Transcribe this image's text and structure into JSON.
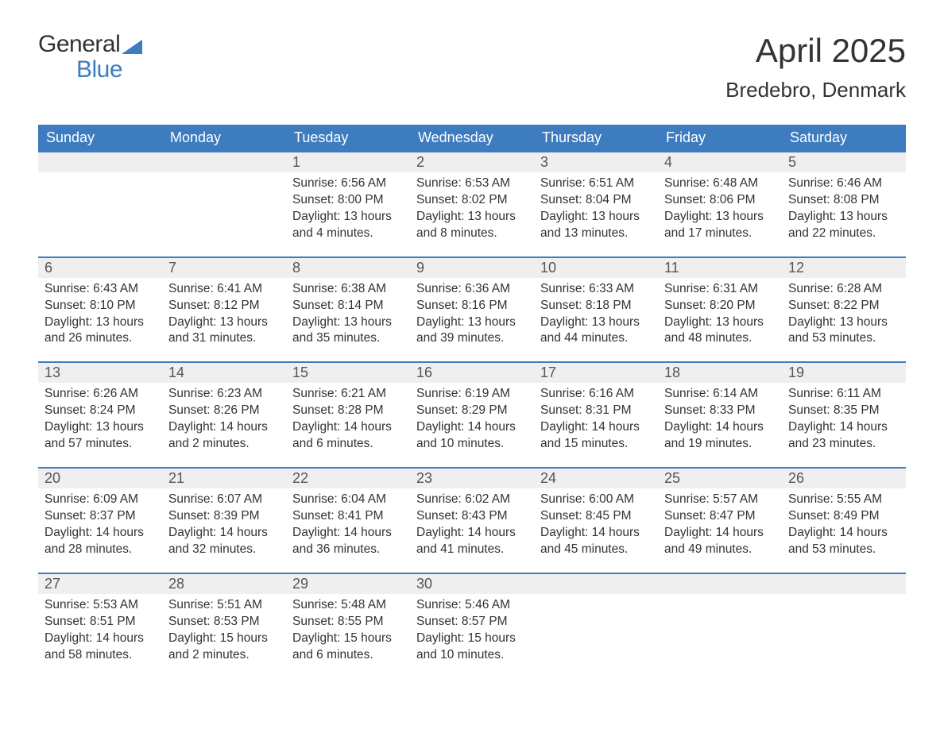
{
  "logo": {
    "text1": "General",
    "text2": "Blue"
  },
  "title": "April 2025",
  "location": "Bredebro, Denmark",
  "colors": {
    "header_bg": "#3d7cbf",
    "header_text": "#ffffff",
    "daynum_bg": "#efefef",
    "daynum_border": "#3d7cbf",
    "body_text": "#333333",
    "logo_accent": "#3d7cbf"
  },
  "columns": [
    "Sunday",
    "Monday",
    "Tuesday",
    "Wednesday",
    "Thursday",
    "Friday",
    "Saturday"
  ],
  "weeks": [
    [
      null,
      null,
      {
        "n": "1",
        "sr": "6:56 AM",
        "ss": "8:00 PM",
        "dl": "13 hours and 4 minutes."
      },
      {
        "n": "2",
        "sr": "6:53 AM",
        "ss": "8:02 PM",
        "dl": "13 hours and 8 minutes."
      },
      {
        "n": "3",
        "sr": "6:51 AM",
        "ss": "8:04 PM",
        "dl": "13 hours and 13 minutes."
      },
      {
        "n": "4",
        "sr": "6:48 AM",
        "ss": "8:06 PM",
        "dl": "13 hours and 17 minutes."
      },
      {
        "n": "5",
        "sr": "6:46 AM",
        "ss": "8:08 PM",
        "dl": "13 hours and 22 minutes."
      }
    ],
    [
      {
        "n": "6",
        "sr": "6:43 AM",
        "ss": "8:10 PM",
        "dl": "13 hours and 26 minutes."
      },
      {
        "n": "7",
        "sr": "6:41 AM",
        "ss": "8:12 PM",
        "dl": "13 hours and 31 minutes."
      },
      {
        "n": "8",
        "sr": "6:38 AM",
        "ss": "8:14 PM",
        "dl": "13 hours and 35 minutes."
      },
      {
        "n": "9",
        "sr": "6:36 AM",
        "ss": "8:16 PM",
        "dl": "13 hours and 39 minutes."
      },
      {
        "n": "10",
        "sr": "6:33 AM",
        "ss": "8:18 PM",
        "dl": "13 hours and 44 minutes."
      },
      {
        "n": "11",
        "sr": "6:31 AM",
        "ss": "8:20 PM",
        "dl": "13 hours and 48 minutes."
      },
      {
        "n": "12",
        "sr": "6:28 AM",
        "ss": "8:22 PM",
        "dl": "13 hours and 53 minutes."
      }
    ],
    [
      {
        "n": "13",
        "sr": "6:26 AM",
        "ss": "8:24 PM",
        "dl": "13 hours and 57 minutes."
      },
      {
        "n": "14",
        "sr": "6:23 AM",
        "ss": "8:26 PM",
        "dl": "14 hours and 2 minutes."
      },
      {
        "n": "15",
        "sr": "6:21 AM",
        "ss": "8:28 PM",
        "dl": "14 hours and 6 minutes."
      },
      {
        "n": "16",
        "sr": "6:19 AM",
        "ss": "8:29 PM",
        "dl": "14 hours and 10 minutes."
      },
      {
        "n": "17",
        "sr": "6:16 AM",
        "ss": "8:31 PM",
        "dl": "14 hours and 15 minutes."
      },
      {
        "n": "18",
        "sr": "6:14 AM",
        "ss": "8:33 PM",
        "dl": "14 hours and 19 minutes."
      },
      {
        "n": "19",
        "sr": "6:11 AM",
        "ss": "8:35 PM",
        "dl": "14 hours and 23 minutes."
      }
    ],
    [
      {
        "n": "20",
        "sr": "6:09 AM",
        "ss": "8:37 PM",
        "dl": "14 hours and 28 minutes."
      },
      {
        "n": "21",
        "sr": "6:07 AM",
        "ss": "8:39 PM",
        "dl": "14 hours and 32 minutes."
      },
      {
        "n": "22",
        "sr": "6:04 AM",
        "ss": "8:41 PM",
        "dl": "14 hours and 36 minutes."
      },
      {
        "n": "23",
        "sr": "6:02 AM",
        "ss": "8:43 PM",
        "dl": "14 hours and 41 minutes."
      },
      {
        "n": "24",
        "sr": "6:00 AM",
        "ss": "8:45 PM",
        "dl": "14 hours and 45 minutes."
      },
      {
        "n": "25",
        "sr": "5:57 AM",
        "ss": "8:47 PM",
        "dl": "14 hours and 49 minutes."
      },
      {
        "n": "26",
        "sr": "5:55 AM",
        "ss": "8:49 PM",
        "dl": "14 hours and 53 minutes."
      }
    ],
    [
      {
        "n": "27",
        "sr": "5:53 AM",
        "ss": "8:51 PM",
        "dl": "14 hours and 58 minutes."
      },
      {
        "n": "28",
        "sr": "5:51 AM",
        "ss": "8:53 PM",
        "dl": "15 hours and 2 minutes."
      },
      {
        "n": "29",
        "sr": "5:48 AM",
        "ss": "8:55 PM",
        "dl": "15 hours and 6 minutes."
      },
      {
        "n": "30",
        "sr": "5:46 AM",
        "ss": "8:57 PM",
        "dl": "15 hours and 10 minutes."
      },
      null,
      null,
      null
    ]
  ],
  "labels": {
    "sunrise": "Sunrise: ",
    "sunset": "Sunset: ",
    "daylight": "Daylight: "
  }
}
